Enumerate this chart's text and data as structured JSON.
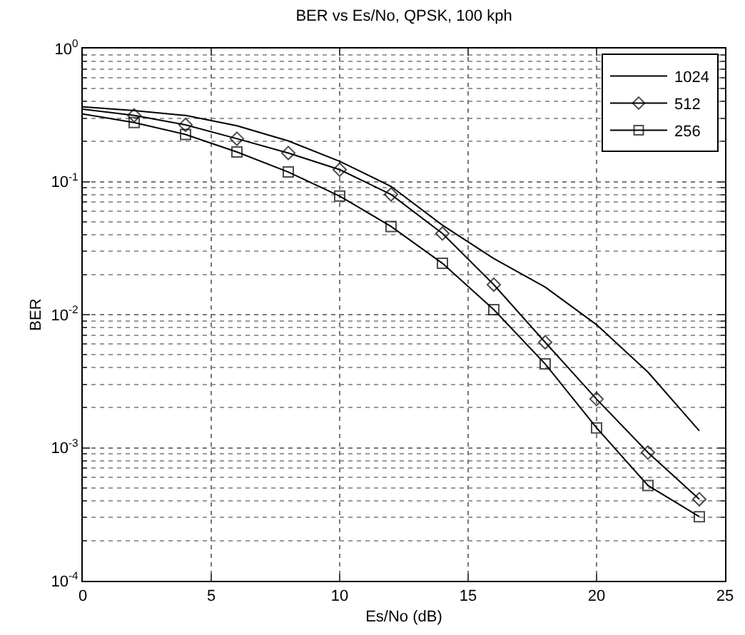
{
  "chart_data": {
    "type": "line",
    "title": "BER vs Es/No, QPSK, 100 kph",
    "xlabel": "Es/No (dB)",
    "ylabel": "BER",
    "log": "y",
    "grid": true,
    "legend": "top right",
    "line_style": "solid",
    "x": [
      0,
      2,
      4,
      6,
      8,
      10,
      12,
      14,
      16,
      18,
      20,
      22,
      24
    ],
    "xlim": [
      0,
      25
    ],
    "xticks": [
      0,
      5,
      10,
      15,
      20,
      25
    ],
    "ylim": [
      0.0001,
      1
    ],
    "yticks": [
      {
        "value": 1,
        "label": "10$^{0}$"
      },
      {
        "value": 0.1,
        "label": "10$^{-1}$"
      },
      {
        "value": 0.01,
        "label": "10$^{-2}$"
      },
      {
        "value": 0.001,
        "label": "10$^{-3}$"
      },
      {
        "value": 0.0001,
        "label": "10$^{-4}$"
      }
    ],
    "series": [
      {
        "name": "1024",
        "color": "#000000",
        "marker": "none",
        "values": [
          0.365,
          0.342,
          0.314,
          0.263,
          0.202,
          0.142,
          0.092,
          0.047,
          0.0264,
          0.0161,
          0.0084,
          0.0037,
          0.00134
        ]
      },
      {
        "name": "512",
        "color": "#000000",
        "marker": "diamond",
        "values": [
          0.35,
          0.314,
          0.267,
          0.21,
          0.164,
          0.123,
          0.08,
          0.0407,
          0.0168,
          0.0062,
          0.00232,
          0.00092,
          0.00041
        ]
      },
      {
        "name": "256",
        "color": "#000000",
        "marker": "square",
        "values": [
          0.322,
          0.278,
          0.226,
          0.167,
          0.118,
          0.0778,
          0.046,
          0.0243,
          0.0109,
          0.00426,
          0.00141,
          0.00052,
          0.000303
        ]
      }
    ]
  }
}
